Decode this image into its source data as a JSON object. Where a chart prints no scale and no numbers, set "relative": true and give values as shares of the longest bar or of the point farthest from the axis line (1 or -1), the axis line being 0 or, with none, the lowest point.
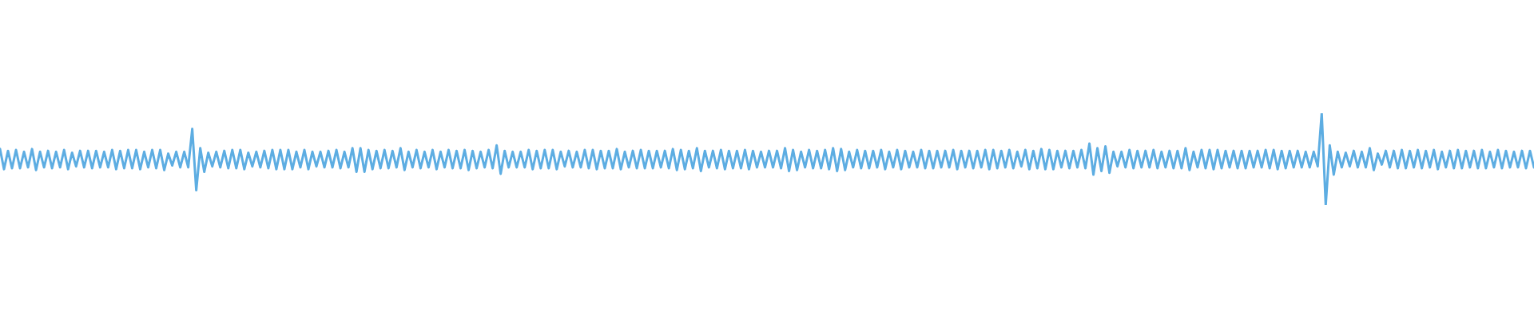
{
  "chart_data": {
    "type": "line",
    "relative": true,
    "color": "#5dade2",
    "categories": [
      null,
      null,
      null,
      null,
      null,
      null,
      null,
      null,
      null,
      null,
      null,
      null,
      null,
      null,
      null,
      null,
      null,
      null,
      null,
      null,
      null,
      null,
      null,
      null,
      null,
      null,
      null,
      null,
      null,
      null,
      null,
      null,
      null,
      null,
      null,
      null,
      null,
      null,
      null,
      null,
      null,
      null,
      null,
      null,
      null,
      null,
      null,
      null,
      null,
      null,
      null,
      null,
      null,
      null,
      null,
      null,
      null,
      null,
      null,
      null,
      null,
      null,
      null,
      null,
      null,
      null,
      null,
      null,
      null,
      null,
      null,
      null,
      null,
      null,
      null,
      null,
      null,
      null,
      null,
      null,
      null,
      null,
      null,
      null,
      null,
      null,
      null,
      null,
      null,
      null,
      null,
      null,
      null,
      null,
      null,
      null,
      null,
      null,
      null,
      null,
      null,
      null,
      null,
      null,
      null,
      null,
      null,
      null,
      null,
      null,
      null,
      null,
      null,
      null,
      null,
      null,
      null,
      null,
      null,
      null,
      null,
      null,
      null,
      null,
      null,
      null,
      null,
      null,
      null,
      null,
      null,
      null,
      null,
      null,
      null,
      null,
      null,
      null,
      null,
      null,
      null,
      null,
      null,
      null,
      null,
      null,
      null,
      null,
      null,
      null,
      null,
      null,
      null,
      null,
      null,
      null,
      null,
      null,
      null,
      null,
      null,
      null,
      null,
      null,
      null,
      null,
      null,
      null,
      null,
      null,
      null,
      null,
      null,
      null,
      null,
      null,
      null,
      null,
      null,
      null,
      null,
      null,
      null,
      null,
      null,
      null,
      null,
      null,
      null,
      null,
      null,
      null,
      null,
      null,
      null,
      null,
      null,
      null,
      null,
      null,
      null,
      null,
      null,
      null,
      null,
      null,
      null,
      null,
      null,
      null,
      null,
      null,
      null,
      null,
      null,
      null,
      null,
      null,
      null,
      null,
      null,
      null,
      null,
      null,
      null,
      null,
      null,
      null,
      null,
      null,
      null,
      null,
      null,
      null,
      null,
      null,
      null,
      null,
      null,
      null,
      null,
      null,
      null,
      null,
      null,
      null,
      null,
      null,
      null,
      null,
      null,
      null,
      null,
      null,
      null,
      null,
      null,
      null,
      null,
      null,
      null,
      null,
      null,
      null,
      null,
      null,
      null,
      null,
      null,
      null,
      null,
      null,
      null,
      null,
      null,
      null,
      null,
      null,
      null,
      null,
      null,
      null,
      null,
      null,
      null,
      null,
      null,
      null,
      null,
      null,
      null,
      null,
      null,
      null,
      null,
      null,
      null,
      null,
      null,
      null,
      null,
      null,
      null,
      null,
      null,
      null,
      null,
      null,
      null,
      null,
      null,
      null,
      null,
      null,
      null,
      null,
      null,
      null,
      null,
      null,
      null,
      null,
      null,
      null,
      null,
      null,
      null,
      null,
      null,
      null,
      null,
      null,
      null,
      null,
      null,
      null,
      null,
      null,
      null,
      null,
      null,
      null,
      null,
      null,
      null,
      null,
      null,
      null,
      null,
      null,
      null,
      null,
      null,
      null,
      null,
      null,
      null,
      null,
      null,
      null,
      null,
      null,
      null,
      null,
      null,
      null,
      null,
      null,
      null,
      null,
      null,
      null,
      null,
      null,
      null,
      null,
      null,
      null,
      null,
      null,
      null,
      null,
      null,
      null
    ],
    "values": [
      0.61,
      0.39,
      0.59,
      0.4,
      0.6,
      0.4,
      0.58,
      0.41,
      0.61,
      0.38,
      0.58,
      0.41,
      0.59,
      0.4,
      0.58,
      0.41,
      0.6,
      0.39,
      0.57,
      0.42,
      0.59,
      0.41,
      0.59,
      0.4,
      0.59,
      0.41,
      0.58,
      0.41,
      0.6,
      0.39,
      0.59,
      0.4,
      0.6,
      0.4,
      0.6,
      0.39,
      0.58,
      0.41,
      0.6,
      0.4,
      0.6,
      0.38,
      0.56,
      0.43,
      0.58,
      0.41,
      0.58,
      0.41,
      0.83,
      0.16,
      0.62,
      0.36,
      0.57,
      0.42,
      0.58,
      0.41,
      0.59,
      0.4,
      0.6,
      0.4,
      0.6,
      0.39,
      0.57,
      0.42,
      0.58,
      0.41,
      0.59,
      0.4,
      0.6,
      0.39,
      0.6,
      0.39,
      0.6,
      0.39,
      0.58,
      0.41,
      0.6,
      0.39,
      0.58,
      0.42,
      0.58,
      0.41,
      0.59,
      0.41,
      0.6,
      0.4,
      0.58,
      0.41,
      0.62,
      0.36,
      0.62,
      0.36,
      0.6,
      0.39,
      0.59,
      0.4,
      0.6,
      0.4,
      0.59,
      0.41,
      0.62,
      0.38,
      0.58,
      0.41,
      0.6,
      0.4,
      0.58,
      0.41,
      0.6,
      0.39,
      0.58,
      0.41,
      0.6,
      0.4,
      0.59,
      0.4,
      0.6,
      0.38,
      0.59,
      0.4,
      0.58,
      0.41,
      0.6,
      0.4,
      0.65,
      0.34,
      0.59,
      0.41,
      0.58,
      0.41,
      0.58,
      0.41,
      0.6,
      0.39,
      0.59,
      0.4,
      0.6,
      0.4,
      0.6,
      0.39,
      0.58,
      0.42,
      0.59,
      0.41,
      0.58,
      0.41,
      0.6,
      0.4,
      0.6,
      0.39,
      0.59,
      0.4,
      0.59,
      0.4,
      0.61,
      0.39,
      0.58,
      0.41,
      0.59,
      0.4,
      0.6,
      0.4,
      0.59,
      0.4,
      0.59,
      0.41,
      0.59,
      0.4,
      0.61,
      0.38,
      0.6,
      0.39,
      0.59,
      0.4,
      0.62,
      0.37,
      0.59,
      0.41,
      0.59,
      0.4,
      0.6,
      0.39,
      0.59,
      0.4,
      0.59,
      0.4,
      0.6,
      0.39,
      0.59,
      0.41,
      0.58,
      0.41,
      0.59,
      0.41,
      0.59,
      0.4,
      0.62,
      0.37,
      0.6,
      0.38,
      0.58,
      0.41,
      0.6,
      0.4,
      0.59,
      0.4,
      0.6,
      0.39,
      0.62,
      0.37,
      0.61,
      0.38,
      0.58,
      0.41,
      0.6,
      0.4,
      0.59,
      0.4,
      0.59,
      0.41,
      0.6,
      0.39,
      0.58,
      0.41,
      0.6,
      0.39,
      0.59,
      0.41,
      0.58,
      0.41,
      0.6,
      0.4,
      0.59,
      0.4,
      0.59,
      0.41,
      0.59,
      0.41,
      0.6,
      0.39,
      0.59,
      0.41,
      0.59,
      0.4,
      0.59,
      0.41,
      0.6,
      0.39,
      0.6,
      0.4,
      0.59,
      0.41,
      0.6,
      0.4,
      0.58,
      0.42,
      0.6,
      0.39,
      0.59,
      0.4,
      0.61,
      0.39,
      0.6,
      0.39,
      0.59,
      0.41,
      0.59,
      0.4,
      0.59,
      0.41,
      0.6,
      0.4,
      0.67,
      0.33,
      0.62,
      0.37,
      0.64,
      0.35,
      0.58,
      0.42,
      0.58,
      0.41,
      0.6,
      0.4,
      0.59,
      0.41,
      0.59,
      0.41,
      0.6,
      0.4,
      0.58,
      0.41,
      0.59,
      0.4,
      0.59,
      0.4,
      0.62,
      0.38,
      0.58,
      0.41,
      0.6,
      0.4,
      0.6,
      0.39,
      0.6,
      0.4,
      0.59,
      0.41,
      0.59,
      0.4,
      0.59,
      0.4,
      0.59,
      0.41,
      0.59,
      0.41,
      0.6,
      0.4,
      0.6,
      0.39,
      0.59,
      0.4,
      0.59,
      0.41,
      0.59,
      0.41,
      0.58,
      0.41,
      0.58,
      0.42,
      1,
      0,
      0.65,
      0.33,
      0.58,
      0.41,
      0.57,
      0.42,
      0.59,
      0.41,
      0.58,
      0.41,
      0.62,
      0.38,
      0.56,
      0.44,
      0.59,
      0.41,
      0.59,
      0.4,
      0.6,
      0.4,
      0.59,
      0.41,
      0.6,
      0.4,
      0.59,
      0.41,
      0.6,
      0.39,
      0.58,
      0.41,
      0.59,
      0.4,
      0.6,
      0.4,
      0.59,
      0.41,
      0.59,
      0.4,
      0.6,
      0.4,
      0.58,
      0.41,
      0.6,
      0.4,
      0.59,
      0.41,
      0.58,
      0.41,
      0.59,
      0.4,
      0.59,
      0.41
    ]
  }
}
